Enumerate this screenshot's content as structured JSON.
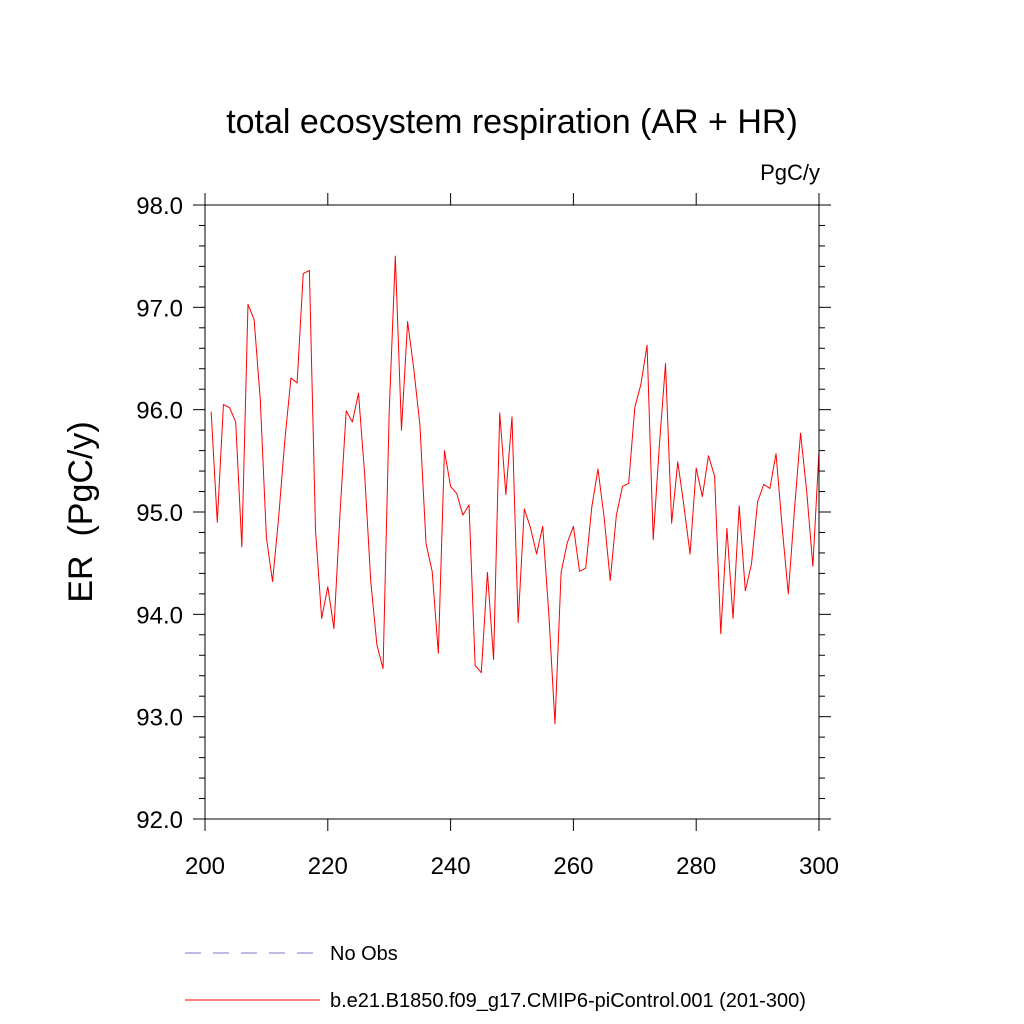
{
  "chart_data": {
    "type": "line",
    "title": "total ecosystem respiration (AR + HR)",
    "units": "PgC/y",
    "xlabel": "",
    "ylabel": "ER  (PgC/y)",
    "xlim": [
      200,
      300
    ],
    "ylim": [
      92.0,
      98.0
    ],
    "x_ticks": [
      200,
      220,
      240,
      260,
      280,
      300
    ],
    "x_tick_labels": [
      "200",
      "220",
      "240",
      "260",
      "280",
      "300"
    ],
    "y_ticks": [
      92.0,
      93.0,
      94.0,
      95.0,
      96.0,
      97.0,
      98.0
    ],
    "y_tick_labels": [
      "92.0",
      "93.0",
      "94.0",
      "95.0",
      "96.0",
      "97.0",
      "98.0"
    ],
    "grid": false,
    "legend_position": "bottom",
    "series": [
      {
        "name": "No Obs",
        "color": "#7777cc",
        "style": "dashed",
        "x": [],
        "values": []
      },
      {
        "name": "b.e21.B1850.f09_g17.CMIP6-piControl.001 (201-300)",
        "color": "#ff0000",
        "style": "solid",
        "x": [
          201,
          202,
          203,
          204,
          205,
          206,
          207,
          208,
          209,
          210,
          211,
          212,
          213,
          214,
          215,
          216,
          217,
          218,
          219,
          220,
          221,
          222,
          223,
          224,
          225,
          226,
          227,
          228,
          229,
          230,
          231,
          232,
          233,
          234,
          235,
          236,
          237,
          238,
          239,
          240,
          241,
          242,
          243,
          244,
          245,
          246,
          247,
          248,
          249,
          250,
          251,
          252,
          253,
          254,
          255,
          256,
          257,
          258,
          259,
          260,
          261,
          262,
          263,
          264,
          265,
          266,
          267,
          268,
          269,
          270,
          271,
          272,
          273,
          274,
          275,
          276,
          277,
          278,
          279,
          280,
          281,
          282,
          283,
          284,
          285,
          286,
          287,
          288,
          289,
          290,
          291,
          292,
          293,
          294,
          295,
          296,
          297,
          298,
          299,
          300
        ],
        "values": [
          95.98,
          94.9,
          96.05,
          96.02,
          95.88,
          94.66,
          97.03,
          96.88,
          96.1,
          94.75,
          94.32,
          94.95,
          95.7,
          96.31,
          96.26,
          97.33,
          97.36,
          94.82,
          93.96,
          94.27,
          93.86,
          95.0,
          95.99,
          95.88,
          96.16,
          95.37,
          94.32,
          93.7,
          93.47,
          95.98,
          97.5,
          95.8,
          96.86,
          96.4,
          95.85,
          94.69,
          94.42,
          93.62,
          95.6,
          95.25,
          95.18,
          94.97,
          95.07,
          93.5,
          93.43,
          94.41,
          93.56,
          95.97,
          95.17,
          95.93,
          93.92,
          95.03,
          94.85,
          94.59,
          94.86,
          94.0,
          92.93,
          94.41,
          94.7,
          94.86,
          94.42,
          94.45,
          95.05,
          95.42,
          94.95,
          94.33,
          94.97,
          95.25,
          95.28,
          96.02,
          96.25,
          96.63,
          94.73,
          95.65,
          96.45,
          94.89,
          95.49,
          95.06,
          94.59,
          95.43,
          95.15,
          95.55,
          95.35,
          93.81,
          94.84,
          93.96,
          95.06,
          94.23,
          94.49,
          95.1,
          95.27,
          95.23,
          95.57,
          94.85,
          94.2,
          95.02,
          95.77,
          95.2,
          94.47,
          95.6
        ]
      }
    ]
  }
}
